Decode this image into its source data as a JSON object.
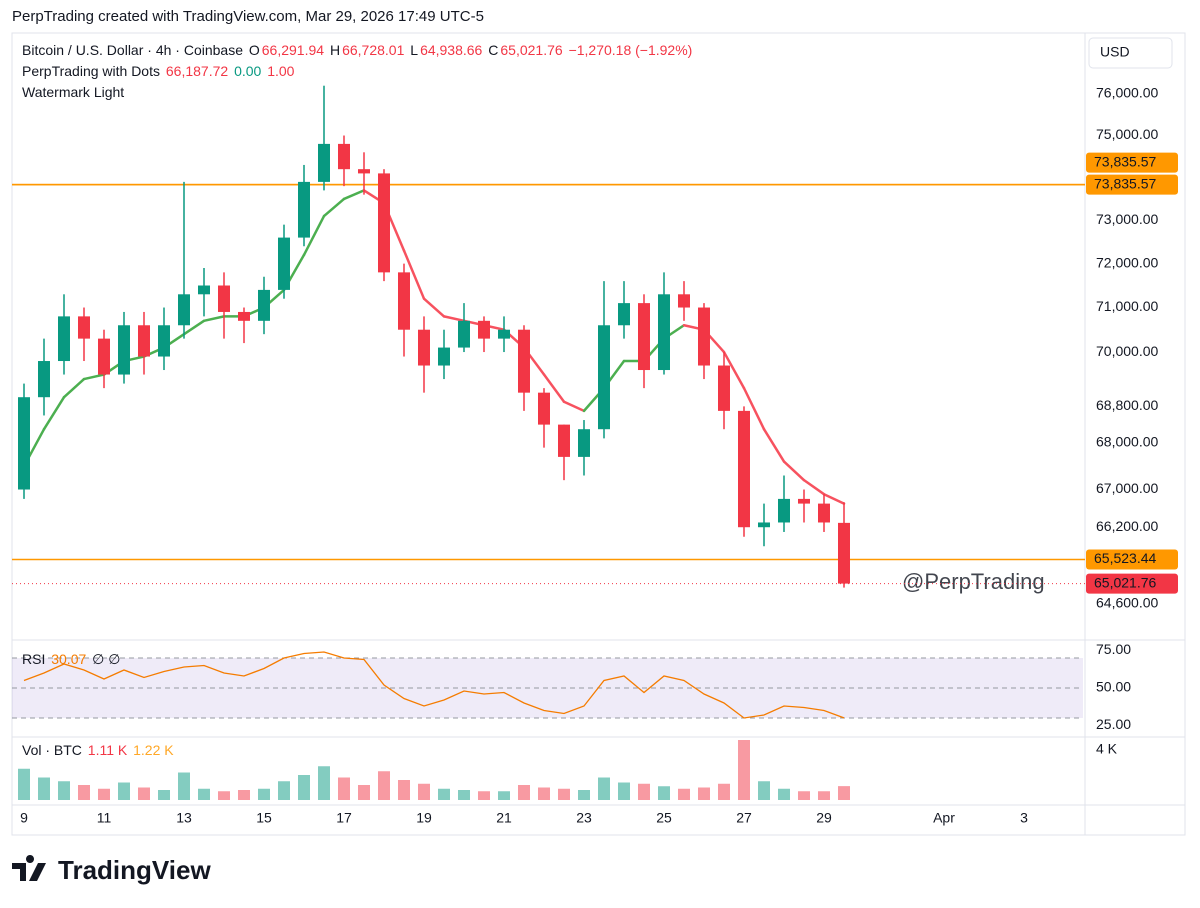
{
  "header": {
    "title": "PerpTrading created with TradingView.com, Mar 29, 2026 17:49 UTC-5"
  },
  "footer": {
    "logo": "TradingView"
  },
  "chart_data": [
    {
      "type": "candlestick",
      "symbol": "Bitcoin / U.S. Dollar · 4h · Coinbase",
      "legend": {
        "o_label": "O",
        "o": "66,291.94",
        "h_label": "H",
        "h": "66,728.01",
        "l_label": "L",
        "l": "64,938.66",
        "c_label": "C",
        "c": "65,021.76",
        "change": "−1,270.18 (−1.92%)"
      },
      "indicator": {
        "name": "PerpTrading with Dots",
        "readout": [
          "66,187.72",
          "0.00",
          "1.00"
        ]
      },
      "indicator2": "Watermark Light",
      "watermark": "@PerpTrading",
      "currency": "USD",
      "log": true,
      "up_color": "#089981",
      "down_color": "#f23645",
      "xlim": [
        8.7,
        35.475
      ],
      "xticks": [
        9,
        11,
        13,
        15,
        17,
        19,
        21,
        23,
        25,
        27,
        29,
        {
          "value": 32,
          "label": "Apr"
        },
        {
          "value": 34,
          "label": "3"
        }
      ],
      "ylim": [
        63904,
        77441
      ],
      "yticks": [
        {
          "value": 76000,
          "label": "76,000.00"
        },
        {
          "value": 75000,
          "label": "75,000.00"
        },
        {
          "value": 73000,
          "label": "73,000.00"
        },
        {
          "value": 72000,
          "label": "72,000.00"
        },
        {
          "value": 71000,
          "label": "71,000.00"
        },
        {
          "value": 70000,
          "label": "70,000.00"
        },
        {
          "value": 68800,
          "label": "68,800.00"
        },
        {
          "value": 68000,
          "label": "68,000.00"
        },
        {
          "value": 67000,
          "label": "67,000.00"
        },
        {
          "value": 66200,
          "label": "66,200.00"
        },
        {
          "value": 64600,
          "label": "64,600.00"
        }
      ],
      "x": [
        9,
        9.5,
        10,
        10.5,
        11,
        11.5,
        12,
        12.5,
        13,
        13.5,
        14,
        14.5,
        15,
        15.5,
        16,
        16.5,
        17,
        17.5,
        18,
        18.5,
        19,
        19.5,
        20,
        20.5,
        21,
        21.5,
        22,
        22.5,
        23,
        23.5,
        24,
        24.5,
        25,
        25.5,
        26,
        26.5,
        27,
        27.5,
        28,
        28.5,
        29,
        29.5
      ],
      "open": [
        67000,
        69000,
        69800,
        70800,
        70300,
        69500,
        70600,
        69900,
        70600,
        71300,
        71500,
        70900,
        70700,
        71400,
        72600,
        73900,
        74800,
        74200,
        74100,
        71800,
        70500,
        69700,
        70100,
        70700,
        70300,
        70500,
        69100,
        68400,
        67700,
        68300,
        70600,
        71100,
        69600,
        71300,
        71000,
        69700,
        68700,
        66200,
        66300,
        66800,
        66700,
        66291.94
      ],
      "high": [
        69300,
        70300,
        71300,
        71000,
        70500,
        70900,
        70900,
        71000,
        73900,
        71900,
        71800,
        71000,
        71700,
        72900,
        74300,
        76200,
        75000,
        74600,
        74200,
        72000,
        70800,
        70500,
        71100,
        70800,
        70800,
        70600,
        69200,
        68400,
        68500,
        71600,
        71600,
        71300,
        71800,
        71600,
        71100,
        70000,
        68800,
        66700,
        67300,
        67000,
        66900,
        66728.01
      ],
      "low": [
        66800,
        68600,
        69500,
        69800,
        69200,
        69300,
        69500,
        69600,
        70300,
        70800,
        70300,
        70200,
        70400,
        71200,
        72400,
        73700,
        73800,
        73600,
        71600,
        69900,
        69100,
        69400,
        70000,
        70000,
        70000,
        68700,
        67900,
        67200,
        67300,
        68100,
        70300,
        69200,
        69500,
        70700,
        69400,
        68300,
        66000,
        65800,
        66100,
        66300,
        66100,
        64938.66
      ],
      "close": [
        69000,
        69800,
        70800,
        70300,
        69500,
        70600,
        69900,
        70600,
        71300,
        71500,
        70900,
        70700,
        71400,
        72600,
        73900,
        74800,
        74200,
        74100,
        71800,
        70500,
        69700,
        70100,
        70700,
        70300,
        70500,
        69100,
        68400,
        67700,
        68300,
        70600,
        71100,
        69600,
        71300,
        71000,
        69700,
        68700,
        66200,
        66300,
        66800,
        66700,
        66300,
        65021.76
      ],
      "trail": {
        "up_color": "#4caf50",
        "down_color": "#f7525f",
        "values": [
          67500,
          68300,
          69000,
          69400,
          69500,
          69800,
          69900,
          70100,
          70400,
          70700,
          70800,
          70800,
          71000,
          71400,
          72200,
          73100,
          73500,
          73700,
          73400,
          72300,
          71200,
          70800,
          70700,
          70600,
          70500,
          70100,
          69500,
          68900,
          68700,
          69200,
          69800,
          69800,
          70300,
          70600,
          70500,
          70000,
          69200,
          68300,
          67600,
          67200,
          66900,
          66700
        ]
      },
      "levels": [
        {
          "value": 73835.57,
          "label": "73,835.57"
        },
        {
          "value": 73835.57,
          "label": "73,835.57"
        },
        {
          "value": 65523.44,
          "label": "65,523.44"
        }
      ],
      "level_color": "#ff9800",
      "last_price": {
        "value": 65021.76,
        "label": "65,021.76"
      }
    },
    {
      "type": "line",
      "name": "RSI",
      "extra": "∅ ∅",
      "color": "#f57c00",
      "band": [
        30,
        70
      ],
      "band_color": "#7e57c2",
      "ylim": [
        20,
        80
      ],
      "yticks": [
        {
          "value": 75,
          "label": "75.00"
        },
        {
          "value": 50,
          "label": "50.00"
        },
        {
          "value": 25,
          "label": "25.00"
        }
      ],
      "values": [
        55,
        60,
        66,
        62,
        56,
        62,
        57,
        61,
        64,
        65,
        60,
        58,
        63,
        70,
        73,
        74,
        70,
        69,
        52,
        43,
        38,
        42,
        48,
        46,
        47,
        40,
        35,
        33,
        38,
        55,
        58,
        47,
        58,
        55,
        46,
        40,
        30,
        32,
        38,
        37,
        35,
        30.07
      ]
    },
    {
      "type": "bar",
      "name": "Vol · BTC",
      "ma_readout": "1.22 K",
      "ma_color": "#ffa726",
      "ylim": [
        0,
        4800
      ],
      "yticks": [
        {
          "value": 4000,
          "label": "4 K"
        }
      ],
      "values": [
        2500,
        1800,
        1500,
        1200,
        900,
        1400,
        1000,
        800,
        2200,
        900,
        700,
        800,
        900,
        1500,
        2000,
        2700,
        1800,
        1200,
        2300,
        1600,
        1300,
        900,
        800,
        700,
        700,
        1200,
        1000,
        900,
        800,
        1800,
        1400,
        1300,
        1100,
        900,
        1000,
        1300,
        4800,
        1500,
        900,
        700,
        700,
        1110
      ],
      "value_labels": {
        "41": "1.11 K"
      }
    }
  ]
}
